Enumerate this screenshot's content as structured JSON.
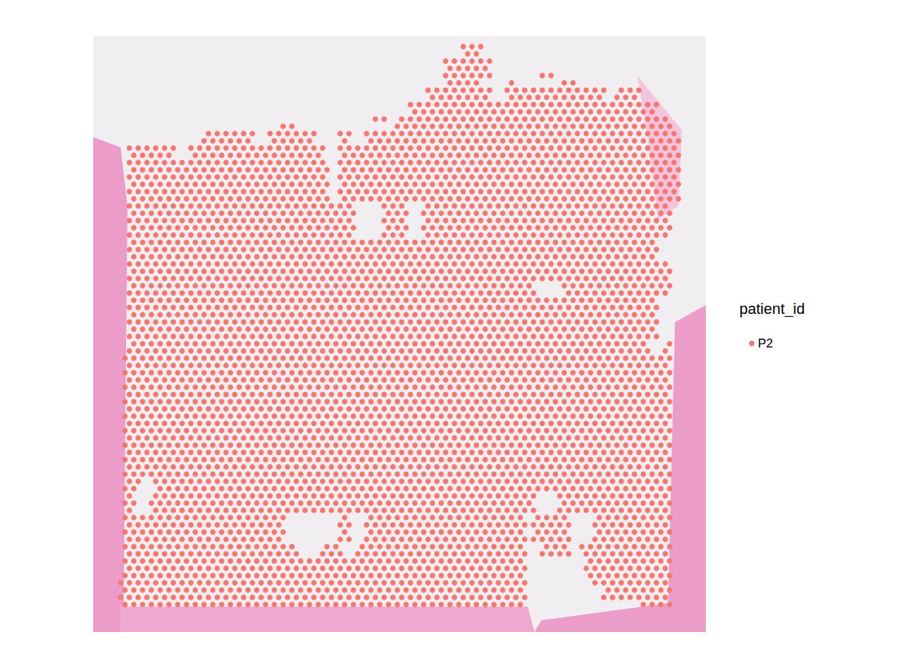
{
  "chart_data": {
    "type": "scatter",
    "legend_title": "patient_id",
    "legend": "right",
    "grid": false,
    "tick_labels": false,
    "marker": "circle",
    "xlim": [
      0,
      127
    ],
    "ylim": [
      0,
      77
    ],
    "series": [
      {
        "name": "P2",
        "color": "#F8766D",
        "rows": [
          {
            "from": 0,
            "to": 1,
            "runs": [
              [
                78,
                82
              ]
            ]
          },
          {
            "from": 2,
            "to": 3,
            "runs": [
              [
                74,
                84
              ]
            ]
          },
          {
            "from": 4,
            "to": 4,
            "runs": [
              [
                74,
                84
              ],
              [
                96,
                98
              ]
            ]
          },
          {
            "from": 5,
            "to": 5,
            "runs": [
              [
                74,
                82
              ],
              [
                88,
                90
              ],
              [
                100,
                104
              ]
            ]
          },
          {
            "from": 6,
            "to": 7,
            "runs": [
              [
                70,
                84
              ],
              [
                88,
                110
              ],
              [
                113,
                118
              ]
            ]
          },
          {
            "from": 8,
            "to": 9,
            "runs": [
              [
                66,
                122
              ]
            ]
          },
          {
            "from": 10,
            "to": 10,
            "runs": [
              [
                58,
                60
              ],
              [
                64,
                124
              ]
            ]
          },
          {
            "from": 11,
            "to": 11,
            "runs": [
              [
                36,
                40
              ],
              [
                62,
                126
              ]
            ]
          },
          {
            "from": 12,
            "to": 13,
            "runs": [
              [
                19,
                30
              ],
              [
                34,
                44
              ],
              [
                50,
                52
              ],
              [
                56,
                127
              ]
            ]
          },
          {
            "from": 14,
            "to": 15,
            "runs": [
              [
                2,
                12
              ],
              [
                16,
                46
              ],
              [
                50,
                127
              ]
            ]
          },
          {
            "from": 16,
            "to": 21,
            "runs": [
              [
                2,
                47
              ],
              [
                50,
                127
              ]
            ]
          },
          {
            "from": 22,
            "to": 26,
            "runs": [
              [
                2,
                53
              ],
              [
                60,
                65
              ],
              [
                69,
                125
              ]
            ]
          },
          {
            "from": 27,
            "to": 29,
            "runs": [
              [
                2,
                122
              ]
            ]
          },
          {
            "from": 30,
            "to": 32,
            "runs": [
              [
                2,
                125
              ]
            ]
          },
          {
            "from": 33,
            "to": 34,
            "runs": [
              [
                2,
                94
              ],
              [
                101,
                125
              ]
            ]
          },
          {
            "from": 35,
            "to": 40,
            "runs": [
              [
                2,
                122
              ]
            ]
          },
          {
            "from": 41,
            "to": 42,
            "runs": [
              [
                2,
                120
              ],
              [
                124,
                125
              ]
            ]
          },
          {
            "from": 43,
            "to": 59,
            "runs": [
              [
                1,
                125
              ]
            ]
          },
          {
            "from": 60,
            "to": 61,
            "runs": [
              [
                1,
                4
              ],
              [
                8,
                125
              ]
            ]
          },
          {
            "from": 62,
            "to": 64,
            "runs": [
              [
                1,
                3
              ],
              [
                7,
                94
              ],
              [
                100,
                125
              ]
            ]
          },
          {
            "from": 65,
            "to": 68,
            "runs": [
              [
                1,
                37
              ],
              [
                50,
                52
              ],
              [
                56,
                92
              ],
              [
                94,
                102
              ],
              [
                108,
                125
              ]
            ]
          },
          {
            "from": 69,
            "to": 70,
            "runs": [
              [
                1,
                40
              ],
              [
                46,
                50
              ],
              [
                54,
                92
              ],
              [
                96,
                102
              ],
              [
                105,
                125
              ]
            ]
          },
          {
            "from": 71,
            "to": 72,
            "runs": [
              [
                1,
                92
              ],
              [
                106,
                125
              ]
            ]
          },
          {
            "from": 73,
            "to": 74,
            "runs": [
              [
                0,
                92
              ],
              [
                107,
                125
              ]
            ]
          },
          {
            "from": 75,
            "to": 76,
            "runs": [
              [
                0,
                92
              ],
              [
                110,
                125
              ]
            ]
          },
          {
            "from": 77,
            "to": 77,
            "runs": [
              [
                0,
                92
              ],
              [
                119,
                125
              ]
            ]
          }
        ]
      }
    ]
  }
}
